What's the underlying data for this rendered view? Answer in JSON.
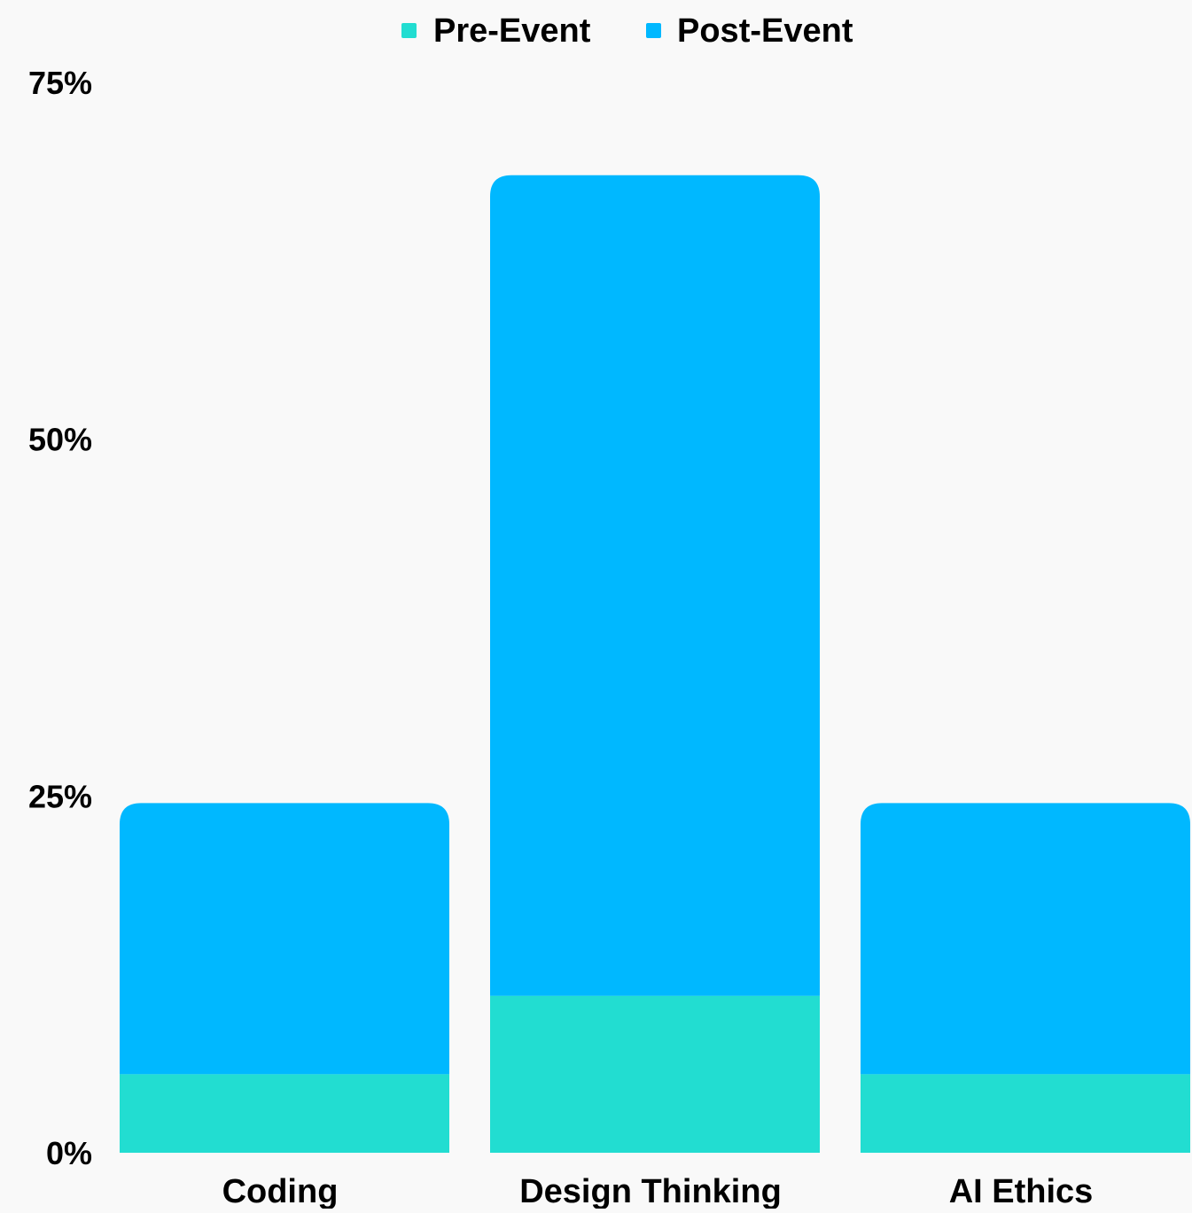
{
  "chart_data": {
    "type": "bar",
    "stacked": true,
    "categories": [
      "Coding",
      "Design Thinking",
      "AI Ethics"
    ],
    "series": [
      {
        "name": "Pre-Event",
        "color": "#22ddd1",
        "values": [
          5.5,
          11,
          5.5
        ]
      },
      {
        "name": "Post-Event",
        "color": "#00b8ff",
        "values": [
          19,
          57.5,
          19
        ]
      }
    ],
    "y_ticks": [
      "0%",
      "25%",
      "50%",
      "75%"
    ],
    "y_tick_values": [
      0,
      25,
      50,
      75
    ],
    "ylim": [
      0,
      75
    ],
    "grid": false,
    "legend_position": "top-center",
    "background_color": "#f9f9f9"
  }
}
